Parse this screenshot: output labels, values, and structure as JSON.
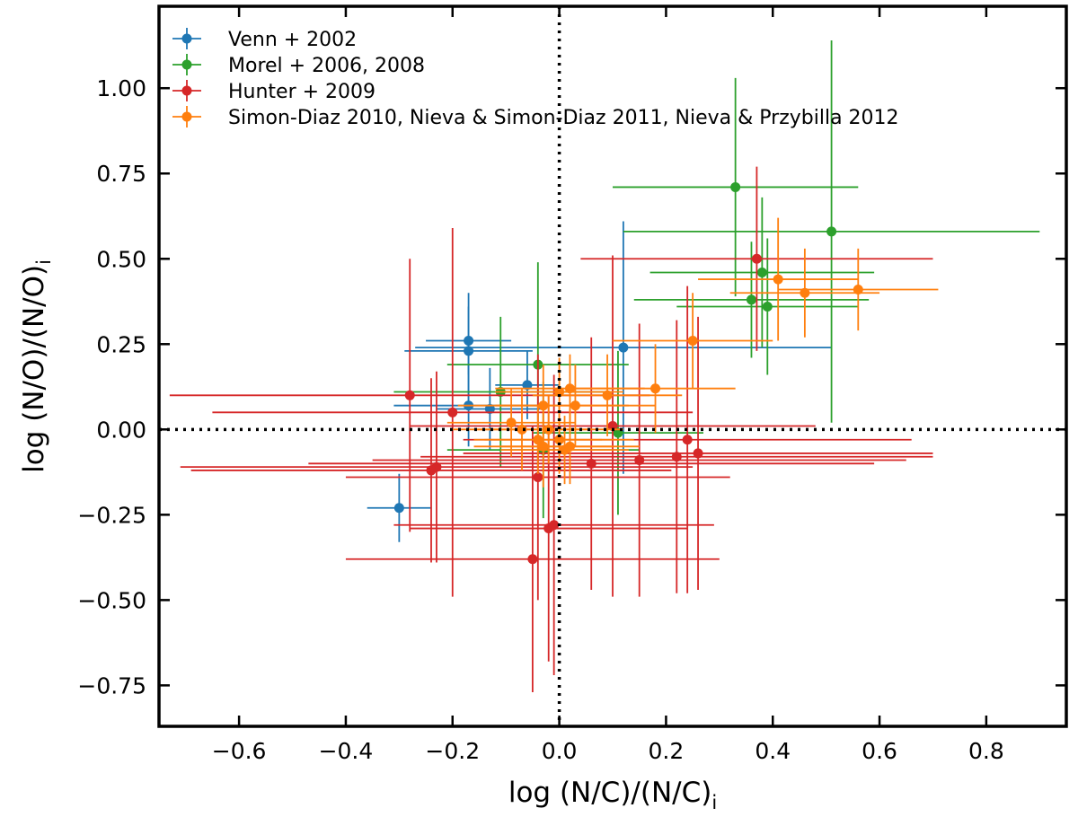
{
  "chart_data": {
    "type": "scatter",
    "title": "",
    "xlabel": "log (N/C)/(N/C)",
    "xlabel_subscript": "i",
    "ylabel": "log (N/O)/(N/O)",
    "ylabel_subscript": "i",
    "xlim": [
      -0.75,
      0.95
    ],
    "ylim": [
      -0.87,
      1.24
    ],
    "xticks": [
      -0.6,
      -0.4,
      -0.2,
      0.0,
      0.2,
      0.4,
      0.6,
      0.8
    ],
    "xtick_labels": [
      "−0.6",
      "−0.4",
      "−0.2",
      "0.0",
      "0.2",
      "0.4",
      "0.6",
      "0.8"
    ],
    "yticks": [
      -0.75,
      -0.5,
      -0.25,
      0.0,
      0.25,
      0.5,
      0.75,
      1.0
    ],
    "ytick_labels": [
      "−0.75",
      "−0.50",
      "−0.25",
      "0.00",
      "0.25",
      "0.50",
      "0.75",
      "1.00"
    ],
    "reference_lines": {
      "x": 0.0,
      "y": 0.0,
      "style": "dotted"
    },
    "grid": false,
    "legend_position": "top-left",
    "series": [
      {
        "name": "Venn + 2002",
        "color": "#1f77b4",
        "points": [
          {
            "x": -0.3,
            "y": -0.23,
            "xerr": 0.06,
            "yerr": 0.1
          },
          {
            "x": -0.17,
            "y": 0.26,
            "xerr": 0.08,
            "yerr": 0.1
          },
          {
            "x": -0.17,
            "y": 0.23,
            "xerr": 0.12,
            "yerr": 0.17
          },
          {
            "x": -0.17,
            "y": 0.07,
            "xerr": 0.14,
            "yerr": 0.12
          },
          {
            "x": -0.13,
            "y": 0.06,
            "xerr": 0.1,
            "yerr": 0.12
          },
          {
            "x": -0.06,
            "y": 0.13,
            "xerr": 0.06,
            "yerr": 0.1
          },
          {
            "x": 0.12,
            "y": 0.24,
            "xerr": 0.39,
            "yerr": 0.37
          }
        ]
      },
      {
        "name": "Morel + 2006, 2008",
        "color": "#2ca02c",
        "points": [
          {
            "x": 0.33,
            "y": 0.71,
            "xerr": 0.23,
            "yerr": 0.32
          },
          {
            "x": 0.51,
            "y": 0.58,
            "xerr": 0.39,
            "yerr": 0.56
          },
          {
            "x": 0.38,
            "y": 0.46,
            "xerr": 0.21,
            "yerr": 0.22
          },
          {
            "x": 0.36,
            "y": 0.38,
            "xerr": 0.22,
            "yerr": 0.17
          },
          {
            "x": 0.39,
            "y": 0.36,
            "xerr": 0.17,
            "yerr": 0.2
          },
          {
            "x": -0.04,
            "y": 0.19,
            "xerr": 0.17,
            "yerr": 0.3
          },
          {
            "x": -0.11,
            "y": 0.11,
            "xerr": 0.2,
            "yerr": 0.22
          },
          {
            "x": 0.11,
            "y": -0.01,
            "xerr": 0.16,
            "yerr": 0.24
          },
          {
            "x": -0.03,
            "y": -0.06,
            "xerr": 0.18,
            "yerr": 0.2
          }
        ]
      },
      {
        "name": "Hunter + 2009",
        "color": "#d62728",
        "points": [
          {
            "x": 0.37,
            "y": 0.5,
            "xerr": 0.33,
            "yerr": 0.27
          },
          {
            "x": -0.28,
            "y": 0.1,
            "xerr": 0.45,
            "yerr": 0.4
          },
          {
            "x": -0.2,
            "y": 0.05,
            "xerr": 0.45,
            "yerr": 0.54
          },
          {
            "x": 0.1,
            "y": 0.01,
            "xerr": 0.38,
            "yerr": 0.5
          },
          {
            "x": 0.24,
            "y": -0.03,
            "xerr": 0.42,
            "yerr": 0.45
          },
          {
            "x": 0.26,
            "y": -0.07,
            "xerr": 0.44,
            "yerr": 0.4
          },
          {
            "x": 0.22,
            "y": -0.08,
            "xerr": 0.48,
            "yerr": 0.4
          },
          {
            "x": 0.15,
            "y": -0.09,
            "xerr": 0.5,
            "yerr": 0.4
          },
          {
            "x": 0.06,
            "y": -0.1,
            "xerr": 0.53,
            "yerr": 0.37
          },
          {
            "x": -0.23,
            "y": -0.11,
            "xerr": 0.48,
            "yerr": 0.28
          },
          {
            "x": -0.24,
            "y": -0.12,
            "xerr": 0.45,
            "yerr": 0.27
          },
          {
            "x": -0.04,
            "y": -0.14,
            "xerr": 0.36,
            "yerr": 0.36
          },
          {
            "x": -0.01,
            "y": -0.28,
            "xerr": 0.3,
            "yerr": 0.44
          },
          {
            "x": -0.02,
            "y": -0.29,
            "xerr": 0.26,
            "yerr": 0.39
          },
          {
            "x": -0.05,
            "y": -0.38,
            "xerr": 0.35,
            "yerr": 0.39
          }
        ]
      },
      {
        "name": "Simon-Diaz 2010, Nieva & Simon-Diaz 2011, Nieva & Przybilla 2012",
        "color": "#ff7f0e",
        "points": [
          {
            "x": 0.56,
            "y": 0.41,
            "xerr": 0.15,
            "yerr": 0.12
          },
          {
            "x": 0.46,
            "y": 0.4,
            "xerr": 0.14,
            "yerr": 0.13
          },
          {
            "x": 0.41,
            "y": 0.44,
            "xerr": 0.15,
            "yerr": 0.18
          },
          {
            "x": 0.25,
            "y": 0.26,
            "xerr": 0.15,
            "yerr": 0.14
          },
          {
            "x": 0.18,
            "y": 0.12,
            "xerr": 0.15,
            "yerr": 0.13
          },
          {
            "x": 0.09,
            "y": 0.1,
            "xerr": 0.14,
            "yerr": 0.12
          },
          {
            "x": 0.02,
            "y": 0.12,
            "xerr": 0.14,
            "yerr": 0.1
          },
          {
            "x": 0.03,
            "y": 0.07,
            "xerr": 0.15,
            "yerr": 0.12
          },
          {
            "x": 0.0,
            "y": 0.11,
            "xerr": 0.12,
            "yerr": 0.1
          },
          {
            "x": -0.03,
            "y": 0.07,
            "xerr": 0.16,
            "yerr": 0.12
          },
          {
            "x": -0.09,
            "y": 0.02,
            "xerr": 0.12,
            "yerr": 0.1
          },
          {
            "x": -0.07,
            "y": 0.0,
            "xerr": 0.13,
            "yerr": 0.12
          },
          {
            "x": -0.02,
            "y": 0.0,
            "xerr": 0.14,
            "yerr": 0.1
          },
          {
            "x": -0.04,
            "y": -0.03,
            "xerr": 0.12,
            "yerr": 0.1
          },
          {
            "x": -0.03,
            "y": -0.05,
            "xerr": 0.13,
            "yerr": 0.12
          },
          {
            "x": 0.0,
            "y": -0.03,
            "xerr": 0.14,
            "yerr": 0.1
          },
          {
            "x": 0.01,
            "y": -0.06,
            "xerr": 0.12,
            "yerr": 0.1
          },
          {
            "x": 0.02,
            "y": -0.05,
            "xerr": 0.13,
            "yerr": 0.11
          }
        ]
      }
    ]
  }
}
